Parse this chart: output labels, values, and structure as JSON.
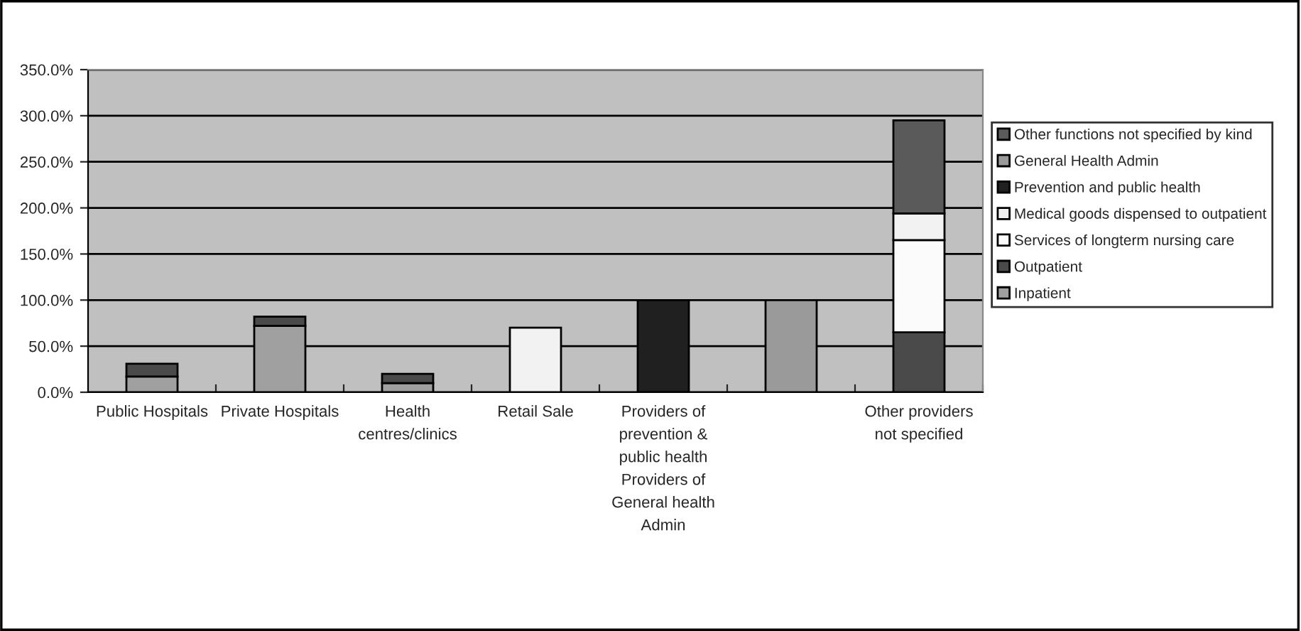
{
  "chart_data": {
    "type": "bar",
    "stacked": true,
    "categories": [
      "Public Hospitals",
      "Private Hospitals",
      "Health\ncentres/clinics",
      "Retail Sale",
      "Providers of\nprevention &\npublic health\nProviders of\nGeneral health\nAdmin",
      null,
      "Other providers\nnot specified"
    ],
    "series": [
      {
        "name": "Inpatient",
        "color": "#a0a0a0",
        "values": [
          17,
          72,
          10,
          null,
          null,
          null,
          null
        ]
      },
      {
        "name": "Outpatient",
        "color": "#4a4a4a",
        "values": [
          14,
          10,
          10,
          null,
          null,
          null,
          65
        ]
      },
      {
        "name": "Services of longterm nursing care",
        "color": "#fbfbfb",
        "values": [
          null,
          null,
          null,
          null,
          null,
          null,
          100
        ]
      },
      {
        "name": "Medical goods dispensed to outpatient",
        "color": "#f2f2f2",
        "values": [
          null,
          null,
          null,
          70,
          null,
          null,
          29
        ]
      },
      {
        "name": "Prevention and public health",
        "color": "#202020",
        "values": [
          null,
          null,
          null,
          null,
          100,
          null,
          null
        ]
      },
      {
        "name": "General Health Admin",
        "color": "#9a9a9a",
        "values": [
          null,
          null,
          null,
          null,
          null,
          100,
          null
        ]
      },
      {
        "name": "Other functions not specified by kind",
        "color": "#5a5a5a",
        "values": [
          null,
          null,
          null,
          null,
          null,
          null,
          101
        ]
      }
    ],
    "ylim": [
      0,
      350
    ],
    "yticks": [
      {
        "value": 0,
        "label": "0.0%"
      },
      {
        "value": 50,
        "label": "50.0%"
      },
      {
        "value": 100,
        "label": "100.0%"
      },
      {
        "value": 150,
        "label": "150.0%"
      },
      {
        "value": 200,
        "label": "200.0%"
      },
      {
        "value": 250,
        "label": "250.0%"
      },
      {
        "value": 300,
        "label": "300.0%"
      },
      {
        "value": 350,
        "label": "350.0%"
      }
    ],
    "grid": "y",
    "legend": "right"
  }
}
